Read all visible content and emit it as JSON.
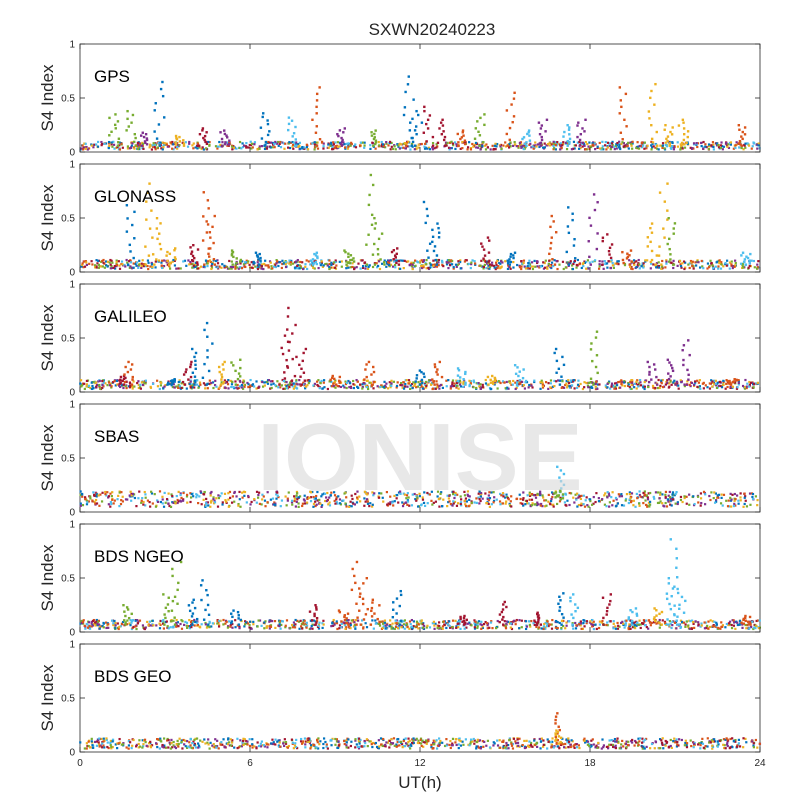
{
  "title": "SXWN20240223",
  "watermark": "IONISE",
  "xlabel": "UT(h)",
  "ylabel": "S4 Index",
  "xticks": [
    "0",
    "6",
    "12",
    "18",
    "24"
  ],
  "yticks": [
    "0",
    "0.5",
    "1"
  ],
  "colors": [
    "#0072BD",
    "#D95319",
    "#EDB120",
    "#7E2F8E",
    "#77AC30",
    "#4DBEEE",
    "#A2142F"
  ],
  "chart_data": [
    {
      "type": "scatter",
      "panel": "GPS",
      "xlim": [
        0,
        24
      ],
      "ylim": [
        0,
        1
      ],
      "baseline": 0.06,
      "spikes": [
        {
          "x": 1.2,
          "y": 0.35,
          "c": 4
        },
        {
          "x": 1.8,
          "y": 0.38,
          "c": 4
        },
        {
          "x": 2.2,
          "y": 0.18,
          "c": 3
        },
        {
          "x": 2.8,
          "y": 0.65,
          "c": 0
        },
        {
          "x": 3.5,
          "y": 0.15,
          "c": 2
        },
        {
          "x": 4.3,
          "y": 0.22,
          "c": 6
        },
        {
          "x": 5.1,
          "y": 0.2,
          "c": 3
        },
        {
          "x": 6.5,
          "y": 0.36,
          "c": 0
        },
        {
          "x": 7.5,
          "y": 0.32,
          "c": 5
        },
        {
          "x": 8.3,
          "y": 0.6,
          "c": 1
        },
        {
          "x": 9.2,
          "y": 0.22,
          "c": 3
        },
        {
          "x": 10.4,
          "y": 0.2,
          "c": 4
        },
        {
          "x": 11.6,
          "y": 0.7,
          "c": 0
        },
        {
          "x": 11.9,
          "y": 0.38,
          "c": 0
        },
        {
          "x": 12.3,
          "y": 0.42,
          "c": 6
        },
        {
          "x": 12.8,
          "y": 0.3,
          "c": 6
        },
        {
          "x": 13.5,
          "y": 0.2,
          "c": 1
        },
        {
          "x": 14.1,
          "y": 0.35,
          "c": 4
        },
        {
          "x": 15.2,
          "y": 0.55,
          "c": 1
        },
        {
          "x": 15.7,
          "y": 0.2,
          "c": 5
        },
        {
          "x": 16.3,
          "y": 0.3,
          "c": 3
        },
        {
          "x": 17.2,
          "y": 0.25,
          "c": 5
        },
        {
          "x": 17.7,
          "y": 0.3,
          "c": 3
        },
        {
          "x": 19.2,
          "y": 0.6,
          "c": 1
        },
        {
          "x": 20.2,
          "y": 0.63,
          "c": 2
        },
        {
          "x": 20.8,
          "y": 0.25,
          "c": 2
        },
        {
          "x": 21.3,
          "y": 0.3,
          "c": 2
        },
        {
          "x": 23.3,
          "y": 0.25,
          "c": 1
        }
      ]
    },
    {
      "type": "scatter",
      "panel": "GLONASS",
      "xlim": [
        0,
        24
      ],
      "ylim": [
        0,
        1
      ],
      "baseline": 0.07,
      "spikes": [
        {
          "x": 1.8,
          "y": 0.62,
          "c": 0
        },
        {
          "x": 2.4,
          "y": 0.82,
          "c": 2
        },
        {
          "x": 2.7,
          "y": 0.5,
          "c": 2
        },
        {
          "x": 3.2,
          "y": 0.22,
          "c": 2
        },
        {
          "x": 4.0,
          "y": 0.25,
          "c": 6
        },
        {
          "x": 4.4,
          "y": 0.74,
          "c": 1
        },
        {
          "x": 4.6,
          "y": 0.52,
          "c": 1
        },
        {
          "x": 5.5,
          "y": 0.2,
          "c": 4
        },
        {
          "x": 6.2,
          "y": 0.18,
          "c": 0
        },
        {
          "x": 8.3,
          "y": 0.18,
          "c": 5
        },
        {
          "x": 9.5,
          "y": 0.2,
          "c": 4
        },
        {
          "x": 10.2,
          "y": 0.9,
          "c": 4
        },
        {
          "x": 10.5,
          "y": 0.5,
          "c": 4
        },
        {
          "x": 11.1,
          "y": 0.22,
          "c": 6
        },
        {
          "x": 12.3,
          "y": 0.65,
          "c": 0
        },
        {
          "x": 12.5,
          "y": 0.45,
          "c": 0
        },
        {
          "x": 14.3,
          "y": 0.32,
          "c": 6
        },
        {
          "x": 15.2,
          "y": 0.18,
          "c": 0
        },
        {
          "x": 16.7,
          "y": 0.52,
          "c": 1
        },
        {
          "x": 17.3,
          "y": 0.6,
          "c": 0
        },
        {
          "x": 18.1,
          "y": 0.72,
          "c": 3
        },
        {
          "x": 18.6,
          "y": 0.35,
          "c": 6
        },
        {
          "x": 19.3,
          "y": 0.2,
          "c": 1
        },
        {
          "x": 20.2,
          "y": 0.45,
          "c": 2
        },
        {
          "x": 20.6,
          "y": 0.82,
          "c": 2
        },
        {
          "x": 20.9,
          "y": 0.5,
          "c": 4
        },
        {
          "x": 23.5,
          "y": 0.18,
          "c": 5
        }
      ]
    },
    {
      "type": "scatter",
      "panel": "GALILEO",
      "xlim": [
        0,
        24
      ],
      "ylim": [
        0,
        1
      ],
      "baseline": 0.07,
      "spikes": [
        {
          "x": 1.5,
          "y": 0.15,
          "c": 6
        },
        {
          "x": 1.7,
          "y": 0.28,
          "c": 1
        },
        {
          "x": 3.2,
          "y": 0.12,
          "c": 0
        },
        {
          "x": 3.8,
          "y": 0.28,
          "c": 6
        },
        {
          "x": 4.1,
          "y": 0.4,
          "c": 0
        },
        {
          "x": 4.5,
          "y": 0.64,
          "c": 0
        },
        {
          "x": 5.0,
          "y": 0.28,
          "c": 2
        },
        {
          "x": 5.5,
          "y": 0.3,
          "c": 4
        },
        {
          "x": 7.2,
          "y": 0.58,
          "c": 6
        },
        {
          "x": 7.5,
          "y": 0.78,
          "c": 6
        },
        {
          "x": 7.8,
          "y": 0.4,
          "c": 6
        },
        {
          "x": 9.0,
          "y": 0.15,
          "c": 1
        },
        {
          "x": 10.2,
          "y": 0.28,
          "c": 1
        },
        {
          "x": 12.0,
          "y": 0.2,
          "c": 0
        },
        {
          "x": 12.6,
          "y": 0.28,
          "c": 1
        },
        {
          "x": 13.5,
          "y": 0.22,
          "c": 5
        },
        {
          "x": 14.5,
          "y": 0.15,
          "c": 2
        },
        {
          "x": 15.5,
          "y": 0.25,
          "c": 5
        },
        {
          "x": 16.9,
          "y": 0.4,
          "c": 0
        },
        {
          "x": 18.1,
          "y": 0.56,
          "c": 4
        },
        {
          "x": 20.2,
          "y": 0.28,
          "c": 3
        },
        {
          "x": 20.9,
          "y": 0.3,
          "c": 3
        },
        {
          "x": 21.4,
          "y": 0.48,
          "c": 3
        },
        {
          "x": 23.0,
          "y": 0.12,
          "c": 1
        }
      ]
    },
    {
      "type": "scatter",
      "panel": "SBAS",
      "xlim": [
        0,
        24
      ],
      "ylim": [
        0,
        1
      ],
      "baseline": 0.12,
      "spikes": [
        {
          "x": 16.9,
          "y": 0.42,
          "c": 5
        },
        {
          "x": 16.9,
          "y": 0.2,
          "c": 4
        }
      ]
    },
    {
      "type": "scatter",
      "panel": "BDS NGEO",
      "xlim": [
        0,
        24
      ],
      "ylim": [
        0,
        1
      ],
      "baseline": 0.07,
      "spikes": [
        {
          "x": 1.7,
          "y": 0.25,
          "c": 4
        },
        {
          "x": 3.1,
          "y": 0.35,
          "c": 4
        },
        {
          "x": 3.4,
          "y": 0.65,
          "c": 4
        },
        {
          "x": 4.0,
          "y": 0.3,
          "c": 0
        },
        {
          "x": 4.4,
          "y": 0.48,
          "c": 0
        },
        {
          "x": 5.5,
          "y": 0.2,
          "c": 0
        },
        {
          "x": 8.2,
          "y": 0.25,
          "c": 6
        },
        {
          "x": 9.3,
          "y": 0.2,
          "c": 1
        },
        {
          "x": 9.7,
          "y": 0.65,
          "c": 1
        },
        {
          "x": 10.0,
          "y": 0.5,
          "c": 1
        },
        {
          "x": 10.4,
          "y": 0.3,
          "c": 1
        },
        {
          "x": 11.2,
          "y": 0.38,
          "c": 0
        },
        {
          "x": 13.5,
          "y": 0.15,
          "c": 6
        },
        {
          "x": 14.9,
          "y": 0.28,
          "c": 6
        },
        {
          "x": 16.2,
          "y": 0.18,
          "c": 6
        },
        {
          "x": 16.9,
          "y": 0.36,
          "c": 0
        },
        {
          "x": 17.4,
          "y": 0.35,
          "c": 5
        },
        {
          "x": 18.6,
          "y": 0.35,
          "c": 6
        },
        {
          "x": 19.5,
          "y": 0.22,
          "c": 5
        },
        {
          "x": 20.4,
          "y": 0.22,
          "c": 2
        },
        {
          "x": 20.8,
          "y": 0.5,
          "c": 5
        },
        {
          "x": 21.0,
          "y": 0.86,
          "c": 5
        },
        {
          "x": 21.2,
          "y": 0.4,
          "c": 5
        },
        {
          "x": 23.5,
          "y": 0.15,
          "c": 1
        }
      ]
    },
    {
      "type": "scatter",
      "panel": "BDS GEO",
      "xlim": [
        0,
        24
      ],
      "ylim": [
        0,
        1
      ],
      "baseline": 0.08,
      "spikes": [
        {
          "x": 16.9,
          "y": 0.36,
          "c": 1
        },
        {
          "x": 16.9,
          "y": 0.2,
          "c": 2
        }
      ]
    }
  ]
}
